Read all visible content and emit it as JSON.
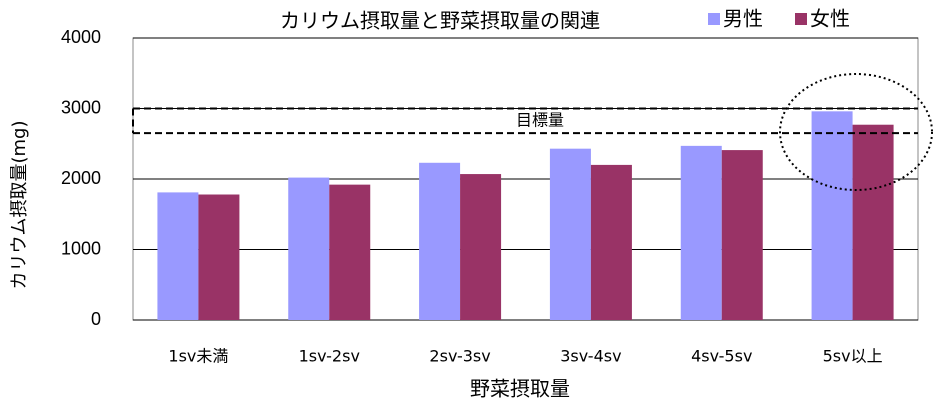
{
  "chart_data": {
    "type": "bar",
    "title": "カリウム摂取量と野菜摂取量の関連",
    "x_label": "野菜摂取量",
    "y_label": "カリウム摂取量(mg)",
    "categories": [
      "1sv未満",
      "1sv-2sv",
      "2sv-3sv",
      "3sv-4sv",
      "4sv-5sv",
      "5sv以上"
    ],
    "series": [
      {
        "name": "男性",
        "color": "#9999ff",
        "values": [
          1810,
          2020,
          2230,
          2430,
          2470,
          2960
        ]
      },
      {
        "name": "女性",
        "color": "#993366",
        "values": [
          1780,
          1920,
          2070,
          2200,
          2410,
          2770
        ]
      }
    ],
    "target": {
      "label": "目標量",
      "range": [
        2650,
        3000
      ]
    },
    "ylim": [
      0,
      4000
    ],
    "yticks": [
      0,
      1000,
      2000,
      3000,
      4000
    ],
    "grid": true,
    "legend": "top-right"
  }
}
